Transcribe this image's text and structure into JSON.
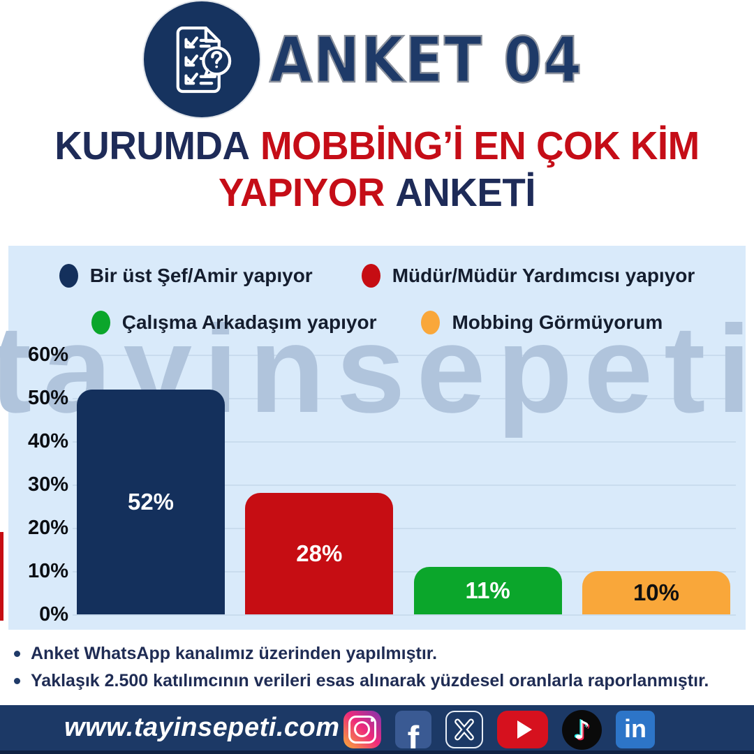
{
  "header": {
    "badge": "ANKET 04"
  },
  "title": {
    "part1": "KURUMDA",
    "part2": "MOBBİNG’İ EN ÇOK KİM",
    "part3": "YAPIYOR",
    "part4": "ANKETİ"
  },
  "chart_data": {
    "type": "bar",
    "title": "KURUMDA MOBBİNG’İ EN ÇOK KİM YAPIYOR ANKETİ",
    "categories": [
      "Bir üst Şef/Amir yapıyor",
      "Müdür/Müdür Yardımcısı yapıyor",
      "Çalışma Arkadaşım yapıyor",
      "Mobbing Görmüyorum"
    ],
    "values": [
      52,
      28,
      11,
      10
    ],
    "value_labels": [
      "52%",
      "28%",
      "11%",
      "10%"
    ],
    "colors": [
      "#14305c",
      "#c60d13",
      "#0ba62b",
      "#f9a73a"
    ],
    "value_label_colors": [
      "#ffffff",
      "#ffffff",
      "#ffffff",
      "#101010"
    ],
    "yticks": [
      "60%",
      "50%",
      "40%",
      "30%",
      "20%",
      "10%",
      "0%"
    ],
    "ylim": [
      0,
      60
    ],
    "grid": true,
    "legend_position": "top",
    "watermark": "tayinsepeti",
    "panel_bg": "#d9eafa"
  },
  "notes": {
    "items": [
      "Anket WhatsApp kanalımız üzerinden yapılmıştır.",
      "Yaklaşık 2.500 katılımcının verileri esas alınarak yüzdesel oranlarla raporlanmıştır."
    ]
  },
  "footer": {
    "website": "www.tayinsepeti.com",
    "social": [
      "instagram",
      "facebook",
      "x",
      "youtube",
      "tiktok",
      "linkedin"
    ]
  },
  "colors": {
    "navy": "#1e2b58",
    "red": "#c50d17",
    "footer_bg": "#1c3966",
    "watermark_color": "#b0c4dc"
  }
}
